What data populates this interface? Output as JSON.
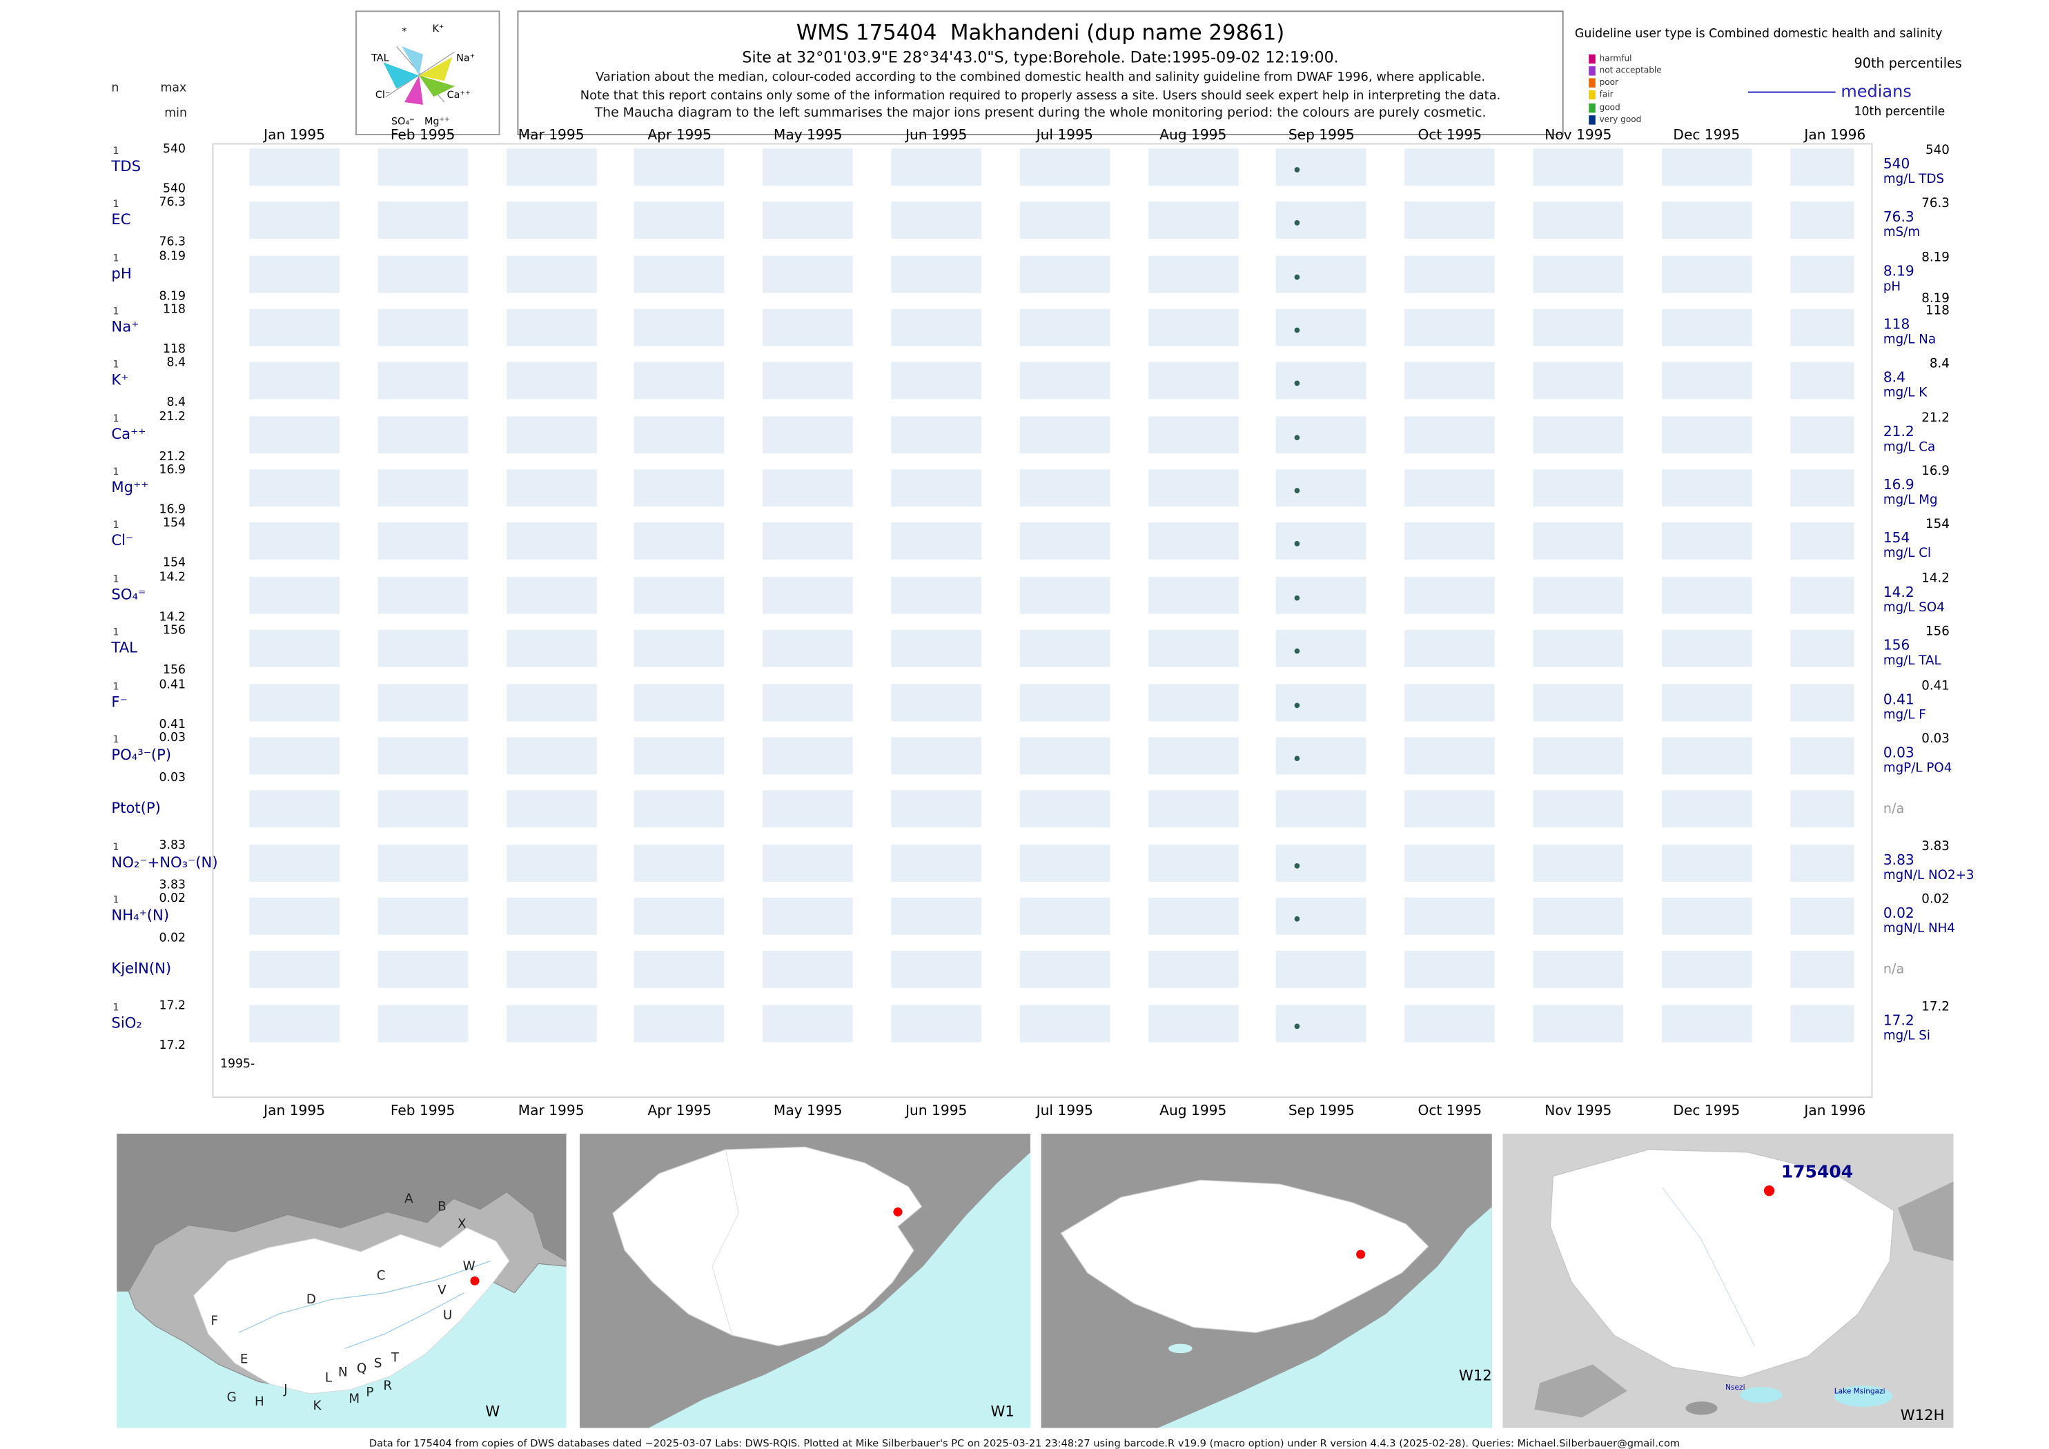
{
  "header": {
    "title": "WMS 175404  Makhandeni (dup name 29861)",
    "site_line": "Site at 32°01'03.9\"E 28°34'43.0\"S, type:Borehole. Date:1995-09-02 12:19:00.",
    "note1": "Variation about the median,  colour-coded according to the combined domestic health and salinity guideline from DWAF 1996, where applicable.",
    "note2": "Note that this report contains only some of the information required to properly assess a site. Users should seek expert help in interpreting the data.",
    "note3": "The Maucha diagram to the left summarises the major ions present during the whole monitoring period: the colours are purely cosmetic."
  },
  "header_left": {
    "n": "n",
    "max": "max",
    "min": "min"
  },
  "maucha": {
    "labels": [
      "*",
      "K⁺",
      "Na⁺",
      "Ca⁺⁺",
      "Mg⁺⁺",
      "SO₄⁼",
      "Cl⁻",
      "TAL"
    ]
  },
  "legend": {
    "guideline": "Guideline user type is Combined domestic health and salinity",
    "classes": [
      {
        "label": "harmful",
        "color": "#cc0077"
      },
      {
        "label": "not acceptable",
        "color": "#9933cc"
      },
      {
        "label": "poor",
        "color": "#ee6600"
      },
      {
        "label": "fair",
        "color": "#eecc00"
      },
      {
        "label": "good",
        "color": "#33aa33"
      },
      {
        "label": "very good",
        "color": "#003388"
      }
    ],
    "p90_label": "90th percentiles",
    "medians_label": "medians",
    "p10_label": "10th percentile"
  },
  "chart_data": {
    "type": "table",
    "title": "WMS 175404 Makhandeni (dup name 29861)",
    "sample_date": "1995-09-02 12:19:00",
    "sample_point_month": "Sep 1995",
    "partial_year_label": "1995-",
    "x_axis_months": [
      "Jan 1995",
      "Feb 1995",
      "Mar 1995",
      "Apr 1995",
      "May 1995",
      "Jun 1995",
      "Jul 1995",
      "Aug 1995",
      "Sep 1995",
      "Oct 1995",
      "Nov 1995",
      "Dec 1995",
      "Jan 1996"
    ],
    "rows": [
      {
        "label": "TDS",
        "n": "1",
        "max": "540",
        "min": "540",
        "p90": "540",
        "median": "540",
        "unit": "mg/L TDS"
      },
      {
        "label": "EC",
        "n": "1",
        "max": "76.3",
        "min": "76.3",
        "p90": "76.3",
        "median": "76.3",
        "unit": "mS/m"
      },
      {
        "label": "pH",
        "n": "1",
        "max": "8.19",
        "min": "8.19",
        "p90": "8.19",
        "p10": "8.19",
        "median": "8.19",
        "unit": "pH"
      },
      {
        "label": "Na⁺",
        "n": "1",
        "max": "118",
        "min": "118",
        "p90": "118",
        "median": "118",
        "unit": "mg/L Na"
      },
      {
        "label": "K⁺",
        "n": "1",
        "max": "8.4",
        "min": "8.4",
        "p90": "8.4",
        "median": "8.4",
        "unit": "mg/L K"
      },
      {
        "label": "Ca⁺⁺",
        "n": "1",
        "max": "21.2",
        "min": "21.2",
        "p90": "21.2",
        "median": "21.2",
        "unit": "mg/L Ca"
      },
      {
        "label": "Mg⁺⁺",
        "n": "1",
        "max": "16.9",
        "min": "16.9",
        "p90": "16.9",
        "median": "16.9",
        "unit": "mg/L Mg"
      },
      {
        "label": "Cl⁻",
        "n": "1",
        "max": "154",
        "min": "154",
        "p90": "154",
        "median": "154",
        "unit": "mg/L Cl"
      },
      {
        "label": "SO₄⁼",
        "n": "1",
        "max": "14.2",
        "min": "14.2",
        "p90": "14.2",
        "median": "14.2",
        "unit": "mg/L SO4"
      },
      {
        "label": "TAL",
        "n": "1",
        "max": "156",
        "min": "156",
        "p90": "156",
        "median": "156",
        "unit": "mg/L TAL"
      },
      {
        "label": "F⁻",
        "n": "1",
        "max": "0.41",
        "min": "0.41",
        "p90": "0.41",
        "median": "0.41",
        "unit": "mg/L F"
      },
      {
        "label": "PO₄³⁻(P)",
        "n": "1",
        "max": "0.03",
        "min": "0.03",
        "p90": "0.03",
        "median": "0.03",
        "unit": "mgP/L PO4"
      },
      {
        "label": "Ptot(P)",
        "na": "n/a"
      },
      {
        "label": "NO₂⁻+NO₃⁻(N)",
        "n": "1",
        "max": "3.83",
        "min": "3.83",
        "p90": "3.83",
        "median": "3.83",
        "unit": "mgN/L NO2+3"
      },
      {
        "label": "NH₄⁺(N)",
        "n": "1",
        "max": "0.02",
        "min": "0.02",
        "p90": "0.02",
        "median": "0.02",
        "unit": "mgN/L NH4"
      },
      {
        "label": "KjelN(N)",
        "na": "n/a"
      },
      {
        "label": "SiO₂",
        "n": "1",
        "max": "17.2",
        "min": "17.2",
        "p90": "17.2",
        "median": "17.2",
        "unit": "mg/L Si"
      }
    ]
  },
  "maps": [
    {
      "label": "W",
      "letters": [
        "A",
        "B",
        "X",
        "C",
        "W",
        "V",
        "U",
        "D",
        "F",
        "E",
        "G",
        "H",
        "J",
        "K",
        "L",
        "N",
        "Q",
        "S",
        "T",
        "M",
        "P",
        "R"
      ]
    },
    {
      "label": "W1"
    },
    {
      "label": "W12"
    },
    {
      "label": "W12H",
      "site_label": "175404",
      "places": [
        "Nsezi",
        "Lake Msingazi"
      ]
    }
  ],
  "colors": {
    "band": "#e6eff8",
    "parameter_text": "#00008B",
    "median_legend": "#2222bb",
    "sample_point": "#2d5f54",
    "site_marker": "#ff0000"
  },
  "footer": {
    "text": "Data for 175404 from copies of DWS databases dated ~2025-03-07 Labs: DWS-RQIS. Plotted at Mike Silberbauer's PC on 2025-03-21 23:48:27 using barcode.R v19.9 (macro option) under R version 4.4.3 (2025-02-28). Queries: Michael.Silberbauer@gmail.com"
  }
}
